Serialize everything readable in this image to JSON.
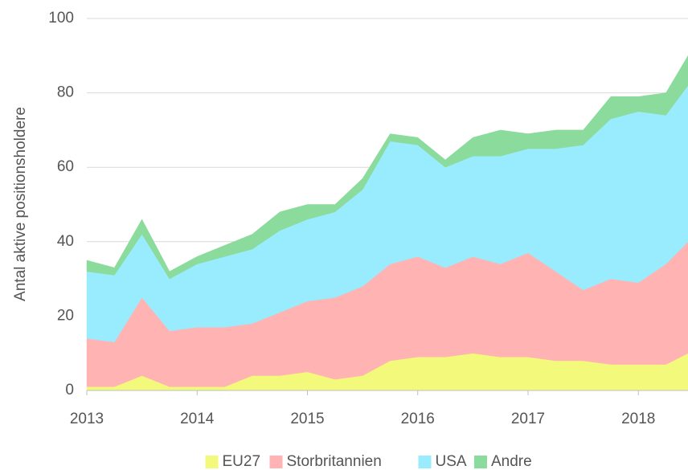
{
  "chart_data": {
    "type": "stacked-area",
    "y_label": "Antal aktive positionsholdere",
    "x": [
      2013,
      2013.25,
      2013.5,
      2013.75,
      2014,
      2014.25,
      2014.5,
      2014.75,
      2015,
      2015.25,
      2015.5,
      2015.75,
      2016,
      2016.25,
      2016.5,
      2016.75,
      2017,
      2017.25,
      2017.5,
      2017.75,
      2018,
      2018.25,
      2018.45
    ],
    "series": [
      {
        "name": "EU27",
        "color": "#f3f97a",
        "values": [
          1,
          1,
          4,
          1,
          1,
          1,
          4,
          4,
          5,
          3,
          4,
          8,
          9,
          9,
          10,
          9,
          9,
          8,
          8,
          7,
          7,
          7,
          10
        ]
      },
      {
        "name": "Storbritannien",
        "color": "#ffb3b3",
        "values": [
          13,
          12,
          21,
          15,
          16,
          16,
          14,
          17,
          19,
          22,
          24,
          26,
          27,
          24,
          26,
          25,
          28,
          24,
          19,
          23,
          22,
          27,
          30
        ]
      },
      {
        "name": "USA",
        "color": "#99ecfd",
        "values": [
          18,
          18,
          17,
          14,
          17,
          19,
          20,
          22,
          22,
          23,
          26,
          33,
          30,
          27,
          27,
          29,
          28,
          33,
          39,
          43,
          46,
          40,
          42
        ]
      },
      {
        "name": "Andre",
        "color": "#8bdb9c",
        "values": [
          3,
          2,
          4,
          2,
          2,
          3,
          4,
          5,
          4,
          2,
          3,
          2,
          2,
          2,
          5,
          7,
          4,
          5,
          4,
          6,
          4,
          6,
          8
        ]
      }
    ],
    "xlim": [
      2013,
      2018.45
    ],
    "xticks": [
      2013,
      2014,
      2015,
      2016,
      2017,
      2018
    ],
    "ylim": [
      0,
      100
    ],
    "yticks": [
      0,
      20,
      40,
      60,
      80,
      100
    ],
    "grid": true,
    "legend": "bottom"
  }
}
